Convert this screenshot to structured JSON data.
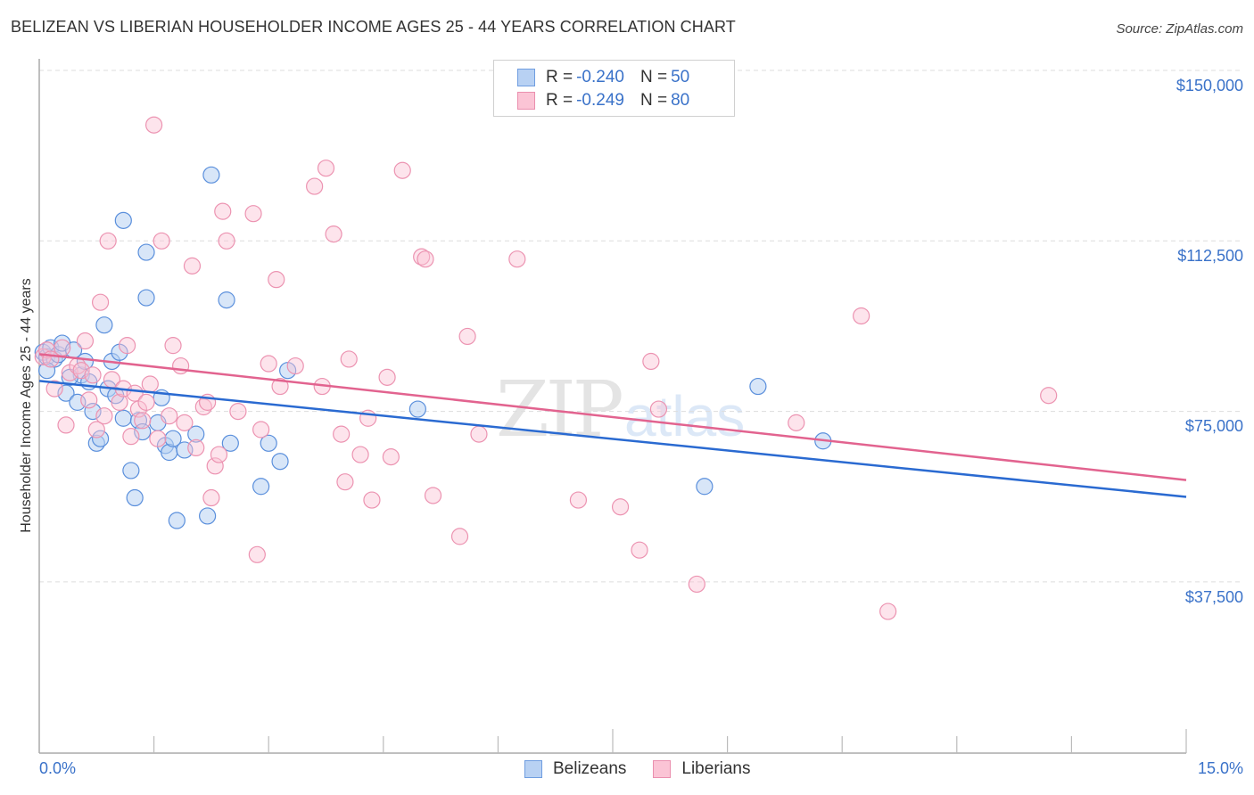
{
  "header": {
    "title": "BELIZEAN VS LIBERIAN HOUSEHOLDER INCOME AGES 25 - 44 YEARS CORRELATION CHART",
    "source": "Source: ZipAtlas.com"
  },
  "watermark": {
    "zip": "ZIP",
    "atlas": "atlas"
  },
  "legend_top": {
    "rows": [
      {
        "r_label": "R = ",
        "r_value": "-0.240",
        "n_label": "N = ",
        "n_value": "50",
        "color": "#6f9de0"
      },
      {
        "r_label": "R = ",
        "r_value": "-0.249",
        "n_label": "N = ",
        "n_value": "80",
        "color": "#ea8fae"
      }
    ]
  },
  "legend_bottom": {
    "items": [
      {
        "label": "Belizeans",
        "color": "#b8d1f3"
      },
      {
        "label": "Liberians",
        "color": "#fbc4d5"
      }
    ]
  },
  "axes": {
    "ylabel": "Householder Income Ages 25 - 44 years",
    "yticks": [
      "$150,000",
      "$112,500",
      "$75,000",
      "$37,500"
    ],
    "xticks": [
      "0.0%",
      "15.0%"
    ]
  },
  "chart_data": {
    "type": "scatter",
    "title": "BELIZEAN VS LIBERIAN HOUSEHOLDER INCOME AGES 25 - 44 YEARS CORRELATION CHART",
    "xlabel": "",
    "ylabel": "Householder Income Ages 25 - 44 years",
    "xlim": [
      0,
      15
    ],
    "ylim": [
      0,
      150000
    ],
    "x_unit": "%",
    "y_ticks": [
      37500,
      75000,
      112500,
      150000
    ],
    "x_ticks_labeled": [
      0,
      15
    ],
    "grid": "horizontal dashed",
    "legend_position": "bottom-center",
    "series": [
      {
        "name": "Belizeans",
        "color": "#6f9de0",
        "R": -0.24,
        "N": 50,
        "trend": {
          "x": [
            0,
            15
          ],
          "y": [
            81700,
            56200
          ]
        },
        "points": [
          [
            0.05,
            88000
          ],
          [
            0.1,
            87000
          ],
          [
            0.15,
            89000
          ],
          [
            0.2,
            86500
          ],
          [
            0.25,
            87500
          ],
          [
            0.3,
            90000
          ],
          [
            0.35,
            79000
          ],
          [
            0.45,
            88500
          ],
          [
            0.5,
            77000
          ],
          [
            0.55,
            83000
          ],
          [
            0.6,
            86000
          ],
          [
            0.65,
            81500
          ],
          [
            0.7,
            75000
          ],
          [
            0.75,
            68000
          ],
          [
            0.8,
            69000
          ],
          [
            0.85,
            94000
          ],
          [
            0.9,
            80000
          ],
          [
            0.95,
            86000
          ],
          [
            1.0,
            78500
          ],
          [
            1.05,
            88000
          ],
          [
            1.1,
            117000
          ],
          [
            1.1,
            73500
          ],
          [
            1.2,
            62000
          ],
          [
            1.25,
            56000
          ],
          [
            1.3,
            73000
          ],
          [
            1.35,
            70500
          ],
          [
            1.4,
            110000
          ],
          [
            1.4,
            100000
          ],
          [
            1.55,
            72500
          ],
          [
            1.6,
            78000
          ],
          [
            1.65,
            67500
          ],
          [
            1.7,
            66000
          ],
          [
            1.75,
            69000
          ],
          [
            1.8,
            51000
          ],
          [
            1.9,
            66500
          ],
          [
            2.05,
            70000
          ],
          [
            2.2,
            52000
          ],
          [
            2.25,
            127000
          ],
          [
            2.45,
            99500
          ],
          [
            2.5,
            68000
          ],
          [
            2.9,
            58500
          ],
          [
            3.0,
            68000
          ],
          [
            3.15,
            64000
          ],
          [
            3.25,
            84000
          ],
          [
            4.95,
            75500
          ],
          [
            8.7,
            58500
          ],
          [
            9.4,
            80500
          ],
          [
            10.25,
            68500
          ],
          [
            0.1,
            84000
          ],
          [
            0.4,
            82500
          ]
        ]
      },
      {
        "name": "Liberians",
        "color": "#ea8fae",
        "R": -0.249,
        "N": 80,
        "trend": {
          "x": [
            0,
            15
          ],
          "y": [
            87600,
            59900
          ]
        },
        "points": [
          [
            0.05,
            87000
          ],
          [
            0.1,
            88500
          ],
          [
            0.15,
            86500
          ],
          [
            0.2,
            80000
          ],
          [
            0.3,
            89000
          ],
          [
            0.35,
            72000
          ],
          [
            0.4,
            83500
          ],
          [
            0.5,
            85000
          ],
          [
            0.55,
            84000
          ],
          [
            0.6,
            90500
          ],
          [
            0.65,
            77500
          ],
          [
            0.7,
            83000
          ],
          [
            0.75,
            71000
          ],
          [
            0.8,
            99000
          ],
          [
            0.85,
            74000
          ],
          [
            0.9,
            112500
          ],
          [
            0.95,
            82000
          ],
          [
            1.05,
            77000
          ],
          [
            1.1,
            80000
          ],
          [
            1.15,
            89500
          ],
          [
            1.2,
            69500
          ],
          [
            1.25,
            79000
          ],
          [
            1.3,
            75500
          ],
          [
            1.35,
            73000
          ],
          [
            1.4,
            77000
          ],
          [
            1.45,
            81000
          ],
          [
            1.5,
            138000
          ],
          [
            1.55,
            69000
          ],
          [
            1.6,
            112500
          ],
          [
            1.7,
            74000
          ],
          [
            1.75,
            89500
          ],
          [
            1.85,
            85000
          ],
          [
            1.9,
            72500
          ],
          [
            2.0,
            107000
          ],
          [
            2.05,
            67000
          ],
          [
            2.15,
            76000
          ],
          [
            2.2,
            77000
          ],
          [
            2.25,
            56000
          ],
          [
            2.3,
            63000
          ],
          [
            2.35,
            65500
          ],
          [
            2.4,
            119000
          ],
          [
            2.45,
            112500
          ],
          [
            2.6,
            75000
          ],
          [
            2.8,
            118500
          ],
          [
            2.85,
            43500
          ],
          [
            2.9,
            71000
          ],
          [
            3.0,
            85500
          ],
          [
            3.1,
            104000
          ],
          [
            3.15,
            80500
          ],
          [
            3.35,
            85000
          ],
          [
            3.6,
            124500
          ],
          [
            3.7,
            80500
          ],
          [
            3.75,
            128500
          ],
          [
            3.85,
            114000
          ],
          [
            3.95,
            70000
          ],
          [
            4.0,
            59500
          ],
          [
            4.05,
            86500
          ],
          [
            4.2,
            65500
          ],
          [
            4.3,
            73500
          ],
          [
            4.35,
            55500
          ],
          [
            4.55,
            82500
          ],
          [
            4.6,
            65000
          ],
          [
            4.75,
            128000
          ],
          [
            5.0,
            109000
          ],
          [
            5.05,
            108500
          ],
          [
            5.15,
            56500
          ],
          [
            5.5,
            47500
          ],
          [
            5.6,
            91500
          ],
          [
            5.75,
            70000
          ],
          [
            6.25,
            108500
          ],
          [
            7.05,
            55500
          ],
          [
            7.6,
            54000
          ],
          [
            7.85,
            44500
          ],
          [
            8.0,
            86000
          ],
          [
            8.1,
            75500
          ],
          [
            8.6,
            37000
          ],
          [
            9.9,
            72500
          ],
          [
            10.75,
            96000
          ],
          [
            11.1,
            31000
          ],
          [
            13.2,
            78500
          ]
        ]
      }
    ]
  }
}
